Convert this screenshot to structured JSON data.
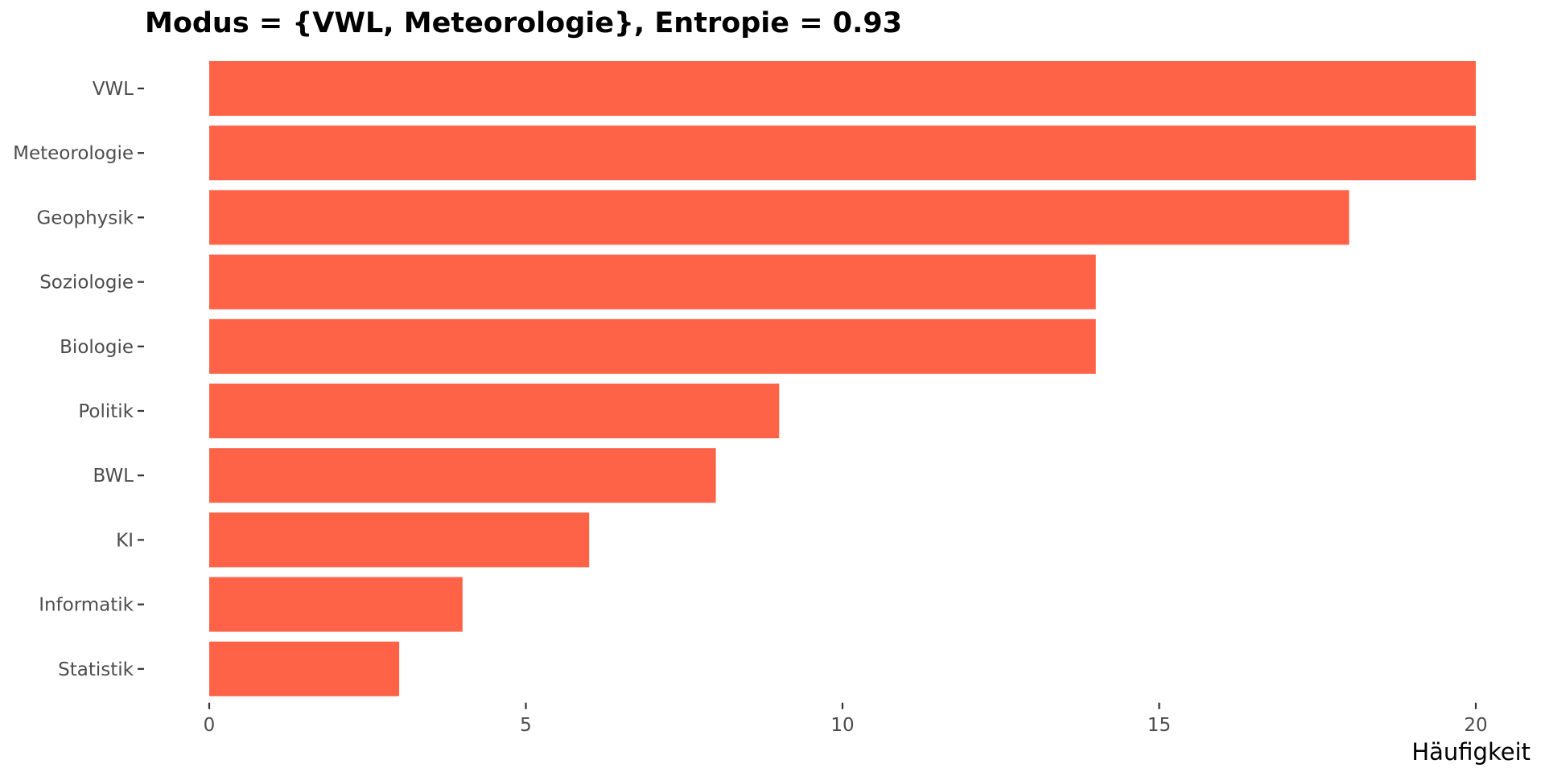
{
  "chart_data": {
    "type": "bar",
    "orientation": "horizontal",
    "title": "Modus = {VWL, Meteorologie}, Entropie = 0.93",
    "xlabel": "Häufigkeit",
    "ylabel": "",
    "categories": [
      "VWL",
      "Meteorologie",
      "Geophysik",
      "Soziologie",
      "Biologie",
      "Politik",
      "BWL",
      "KI",
      "Informatik",
      "Statistik"
    ],
    "values": [
      20,
      20,
      18,
      14,
      14,
      9,
      8,
      6,
      4,
      3
    ],
    "xlim": [
      0,
      20
    ],
    "x_ticks": [
      0,
      5,
      10,
      15,
      20
    ],
    "bar_color": "#ff6347",
    "grid": false,
    "legend": "none"
  }
}
